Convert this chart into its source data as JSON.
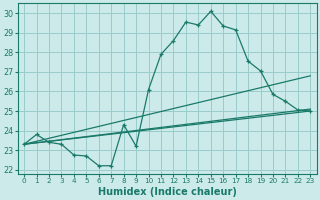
{
  "xlabel": "Humidex (Indice chaleur)",
  "bg_color": "#cceaea",
  "grid_color": "#99cccc",
  "line_color": "#1a7a6a",
  "ylim": [
    21.8,
    30.5
  ],
  "xlim": [
    -0.5,
    23.5
  ],
  "yticks": [
    22,
    23,
    24,
    25,
    26,
    27,
    28,
    29,
    30
  ],
  "xticks": [
    0,
    1,
    2,
    3,
    4,
    5,
    6,
    7,
    8,
    9,
    10,
    11,
    12,
    13,
    14,
    15,
    16,
    17,
    18,
    19,
    20,
    21,
    22,
    23
  ],
  "curve_detailed_x": [
    0,
    1,
    2,
    3,
    4,
    5,
    6,
    7,
    8,
    9,
    10,
    11,
    12,
    13,
    14,
    15,
    16,
    17,
    18,
    19,
    20,
    21,
    22,
    23
  ],
  "curve_detailed_y": [
    23.3,
    23.8,
    23.4,
    23.3,
    22.75,
    22.7,
    22.2,
    22.2,
    24.3,
    23.2,
    26.1,
    27.9,
    28.6,
    29.55,
    29.4,
    30.1,
    29.35,
    29.15,
    27.55,
    27.05,
    25.85,
    25.5,
    25.05,
    25.0
  ],
  "line1_x": [
    0,
    23
  ],
  "line1_y": [
    23.3,
    25.1
  ],
  "line2_x": [
    0,
    23
  ],
  "line2_y": [
    23.3,
    26.8
  ],
  "line3_x": [
    0,
    23
  ],
  "line3_y": [
    23.3,
    25.0
  ]
}
